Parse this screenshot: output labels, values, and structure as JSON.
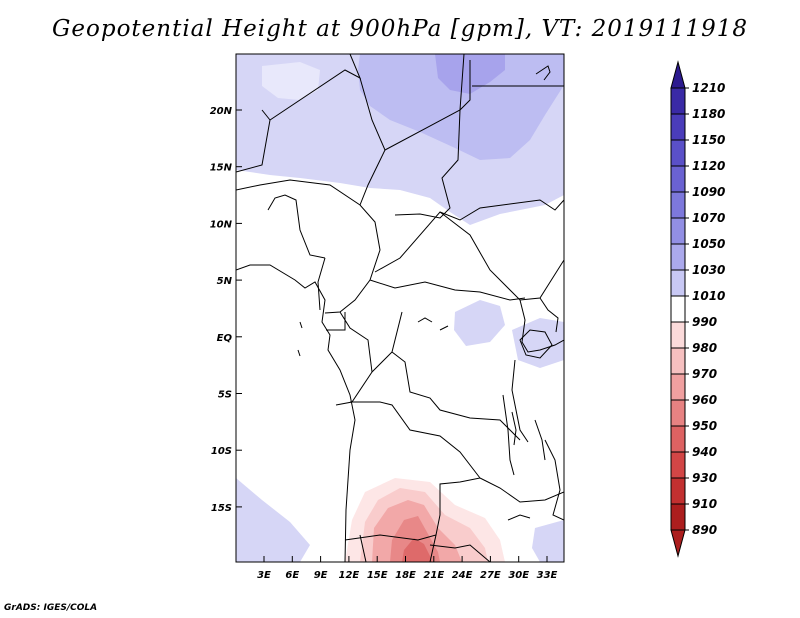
{
  "title": "Geopotential Height at 900hPa [gpm], VT: 2019111918",
  "credit": "GrADS: IGES/COLA",
  "map": {
    "lat_labels": [
      "20N",
      "15N",
      "10N",
      "5N",
      "EQ",
      "5S",
      "10S",
      "15S"
    ],
    "lon_labels": [
      "3E",
      "6E",
      "9E",
      "12E",
      "15E",
      "18E",
      "21E",
      "24E",
      "27E",
      "30E",
      "33E"
    ]
  },
  "colorbar": {
    "labels": [
      "1210",
      "1180",
      "1150",
      "1120",
      "1090",
      "1070",
      "1050",
      "1030",
      "1010",
      "990",
      "980",
      "970",
      "960",
      "950",
      "940",
      "930",
      "910",
      "890"
    ],
    "colors": [
      "#2c1a8f",
      "#3a2aa6",
      "#4a3cba",
      "#5a50c8",
      "#6a62d2",
      "#7d78dc",
      "#928fe4",
      "#aba9ec",
      "#c8c8f4",
      "#ffffff",
      "#fbdada",
      "#f6c0c0",
      "#f0a0a0",
      "#e78282",
      "#dd6262",
      "#d24646",
      "#c23030",
      "#ac1e1e"
    ]
  }
}
